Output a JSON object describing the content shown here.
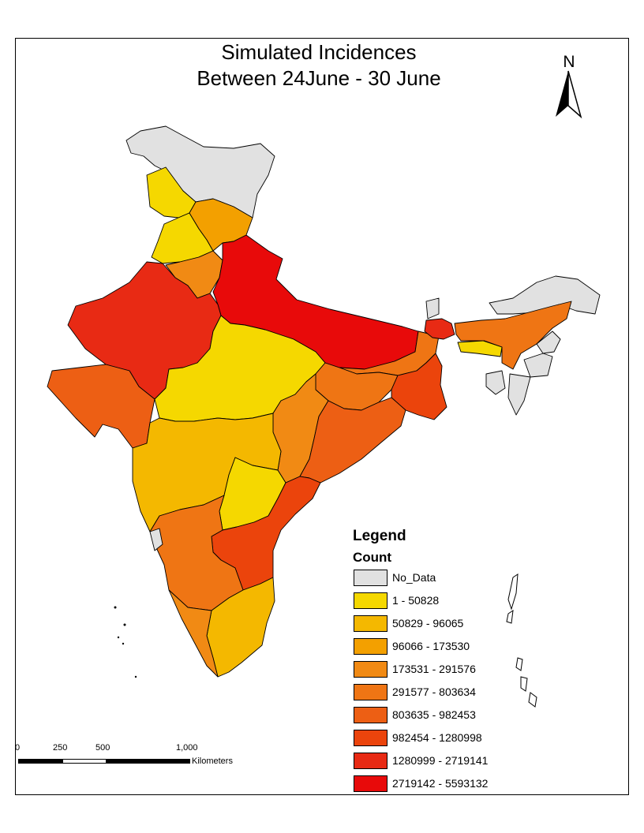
{
  "title": {
    "line1": "Simulated Incidences",
    "line2": "Between 24June - 30 June"
  },
  "north_arrow": {
    "label": "N"
  },
  "legend": {
    "title": "Legend",
    "subtitle": "Count",
    "items": [
      {
        "label": "No_Data",
        "color": "#e1e1e1"
      },
      {
        "label": "1 - 50828",
        "color": "#f5d800"
      },
      {
        "label": "50829 - 96065",
        "color": "#f4b800"
      },
      {
        "label": "96066 - 173530",
        "color": "#f3a000"
      },
      {
        "label": "173531 - 291576",
        "color": "#f18a14"
      },
      {
        "label": "291577 - 803634",
        "color": "#ef7514"
      },
      {
        "label": "803635 - 982453",
        "color": "#ed5f14"
      },
      {
        "label": "982454 - 1280998",
        "color": "#eb440c"
      },
      {
        "label": "1280999 - 2719141",
        "color": "#e82a14"
      },
      {
        "label": "2719142 - 5593132",
        "color": "#e80a0a"
      }
    ]
  },
  "scale_bar": {
    "ticks": [
      "0",
      "250",
      "500",
      "1,000"
    ],
    "units": "Kilometers"
  }
}
